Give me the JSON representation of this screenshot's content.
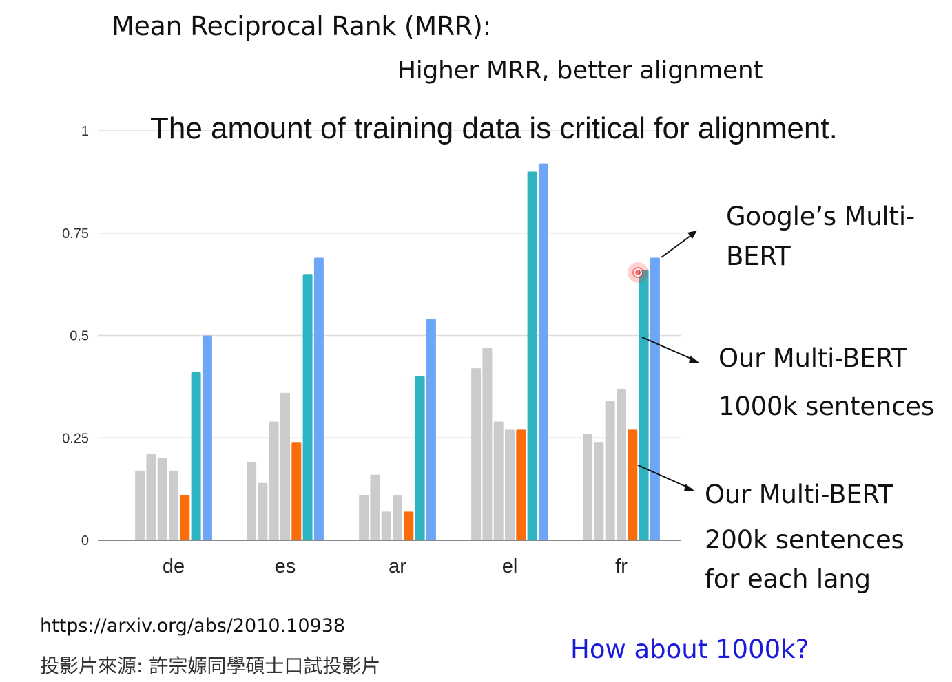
{
  "heading": "Mean Reciprocal Rank (MRR):",
  "subheading": "Higher MRR, better alignment",
  "claim": "The amount of training data is critical for alignment.",
  "annotations": {
    "google_line1": "Google’s Multi-",
    "google_line2": "BERT",
    "ours1000_line1": "Our Multi-BERT",
    "ours1000_line2": "1000k sentences",
    "ours200_line1": "Our Multi-BERT",
    "ours200_line2": "200k sentences",
    "ours200_line3": "for each lang"
  },
  "source_url": "https://arxiv.org/abs/2010.10938",
  "source_credit": "投影片來源: 許宗嫄同學碩士口試投影片",
  "question": "How about 1000k?",
  "colors": {
    "baseline": "#cccccc",
    "ours_200k": "#fb6d0b",
    "ours_1000k": "#2db3c1",
    "google": "#6ea6f7",
    "grid": "#dddddd",
    "axis": "#888888",
    "question_text": "#1a1adb"
  },
  "chart_data": {
    "type": "bar",
    "categories": [
      "de",
      "es",
      "ar",
      "el",
      "fr"
    ],
    "ylim": [
      0,
      1
    ],
    "yticks": [
      {
        "value": 0,
        "label": "0"
      },
      {
        "value": 0.25,
        "label": "0.25"
      },
      {
        "value": 0.5,
        "label": "0.5"
      },
      {
        "value": 0.75,
        "label": "0.75"
      },
      {
        "value": 1,
        "label": "1"
      }
    ],
    "grid": true,
    "series": [
      {
        "values": [
          0.17,
          0.19,
          0.11,
          0.42,
          0.26
        ],
        "color_key": "baseline"
      },
      {
        "values": [
          0.21,
          0.14,
          0.16,
          0.47,
          0.24
        ],
        "color_key": "baseline"
      },
      {
        "values": [
          0.2,
          0.29,
          0.07,
          0.29,
          0.34
        ],
        "color_key": "baseline"
      },
      {
        "values": [
          0.17,
          0.36,
          0.11,
          0.27,
          0.37
        ],
        "color_key": "baseline"
      },
      {
        "name": "Our Multi-BERT 200k sentences for each lang",
        "values": [
          0.11,
          0.24,
          0.07,
          0.27,
          0.27
        ],
        "color_key": "ours_200k"
      },
      {
        "name": "Our Multi-BERT 1000k sentences",
        "values": [
          0.41,
          0.65,
          0.4,
          0.9,
          0.66
        ],
        "color_key": "ours_1000k"
      },
      {
        "name": "Google’s Multi-BERT",
        "values": [
          0.5,
          0.69,
          0.54,
          0.92,
          0.69
        ],
        "color_key": "google"
      }
    ]
  }
}
